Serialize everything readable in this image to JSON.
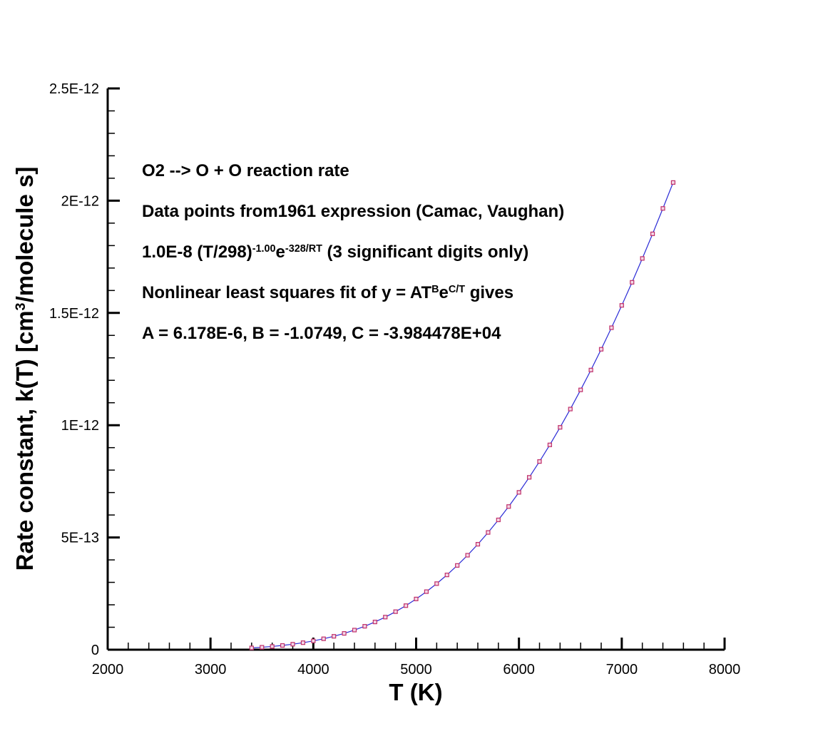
{
  "chart_data": {
    "type": "line",
    "annotations": [
      [
        "O2 --> O + O  reaction rate"
      ],
      [
        "Data points from1961 expression (Camac, Vaughan)"
      ],
      [
        "1.0E-8 (T/298)",
        {
          "text": "-1.00",
          "sup": true
        },
        "e",
        {
          "text": "-328/RT",
          "sup": true
        },
        "  (3 significant digits only)"
      ],
      [
        "Nonlinear least squares fit of  y = AT",
        {
          "text": "B",
          "sup": true
        },
        "e",
        {
          "text": "C/T",
          "sup": true
        },
        " gives"
      ],
      [
        "A = 6.178E-6,  B = -1.0749,  C = -3.984478E+04"
      ]
    ],
    "x_label": "T (K)",
    "y_label": [
      "Rate constant, k(T) [cm",
      {
        "text": "3",
        "sup": true
      },
      "/molecule s]"
    ],
    "x": [
      3400,
      3500,
      3600,
      3700,
      3800,
      3900,
      4000,
      4100,
      4200,
      4300,
      4400,
      4500,
      4600,
      4700,
      4800,
      4900,
      5000,
      5100,
      5200,
      5300,
      5400,
      5500,
      5600,
      5700,
      5800,
      5900,
      6000,
      6100,
      6200,
      6300,
      6400,
      6500,
      6600,
      6700,
      6800,
      6900,
      7000,
      7100,
      7200,
      7300,
      7400,
      7500
    ],
    "series": [
      {
        "line_color": "#2b2bd6",
        "marker_color": "#c0306a",
        "values": [
          8.04e-15,
          1.09e-14,
          1.45e-14,
          1.9e-14,
          2.45e-14,
          3.12e-14,
          3.92e-14,
          4.86e-14,
          5.97e-14,
          7.26e-14,
          8.74e-14,
          1.044e-13,
          1.236e-13,
          1.452e-13,
          1.694e-13,
          1.962e-13,
          2.259e-13,
          2.586e-13,
          2.943e-13,
          3.331e-13,
          3.753e-13,
          4.208e-13,
          4.698e-13,
          5.222e-13,
          5.782e-13,
          6.377e-13,
          7.009e-13,
          7.678e-13,
          8.383e-13,
          9.123e-13,
          9.905e-13,
          1.0719e-12,
          1.1572e-12,
          1.2457e-12,
          1.3382e-12,
          1.4341e-12,
          1.5337e-12,
          1.6365e-12,
          1.7427e-12,
          1.8523e-12,
          1.9655e-12,
          2.081e-12
        ]
      }
    ],
    "xlim": [
      2000,
      8000
    ],
    "xticks": [
      2000,
      3000,
      4000,
      5000,
      6000,
      7000,
      8000
    ],
    "xminorticks": [
      2200,
      2400,
      2600,
      2800,
      3200,
      3400,
      3600,
      3800,
      4200,
      4400,
      4600,
      4800,
      5200,
      5400,
      5600,
      5800,
      6200,
      6400,
      6600,
      6800,
      7200,
      7400,
      7600,
      7800
    ],
    "ylim": [
      0,
      2.5e-12
    ],
    "yticks": [
      0,
      {
        "value": 5e-13,
        "label": "5E-13"
      },
      {
        "value": 1e-12,
        "label": "1E-12"
      },
      {
        "value": 1.5e-12,
        "label": "1.5E-12"
      },
      {
        "value": 2e-12,
        "label": "2E-12"
      },
      {
        "value": 2.5e-12,
        "label": "2.5E-12"
      }
    ],
    "yminorticks": [
      1e-13,
      2e-13,
      3e-13,
      4e-13,
      6e-13,
      7e-13,
      8e-13,
      9e-13,
      1.1e-12,
      1.2e-12,
      1.3e-12,
      1.4e-12,
      1.6e-12,
      1.7e-12,
      1.8e-12,
      1.9e-12,
      2.1e-12,
      2.2e-12,
      2.3e-12,
      2.4e-12
    ]
  }
}
